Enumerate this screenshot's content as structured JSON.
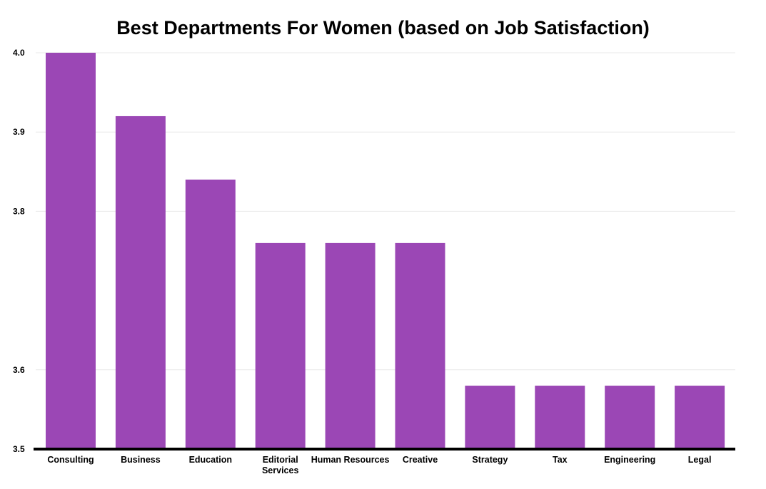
{
  "chart_data": {
    "type": "bar",
    "title": "Best Departments For Women (based on Job Satisfaction)",
    "xlabel": "",
    "ylabel": "",
    "categories": [
      [
        "Consulting"
      ],
      [
        "Business"
      ],
      [
        "Education"
      ],
      [
        "Editorial",
        "Services"
      ],
      [
        "Human Resources"
      ],
      [
        "Creative"
      ],
      [
        "Strategy"
      ],
      [
        "Tax"
      ],
      [
        "Engineering"
      ],
      [
        "Legal"
      ]
    ],
    "values": [
      4.0,
      3.92,
      3.84,
      3.76,
      3.76,
      3.76,
      3.58,
      3.58,
      3.58,
      3.58
    ],
    "ylim": [
      3.5,
      4.0
    ],
    "yticks": [
      3.5,
      3.6,
      3.8,
      3.9,
      4.0
    ],
    "ytick_labels": [
      "3.5",
      "3.6",
      "3.8",
      "3.9",
      "4.0"
    ],
    "grid": true,
    "bar_color": "#9b47b5",
    "axis_color": "#000000",
    "grid_color": "#e8e8e8"
  }
}
